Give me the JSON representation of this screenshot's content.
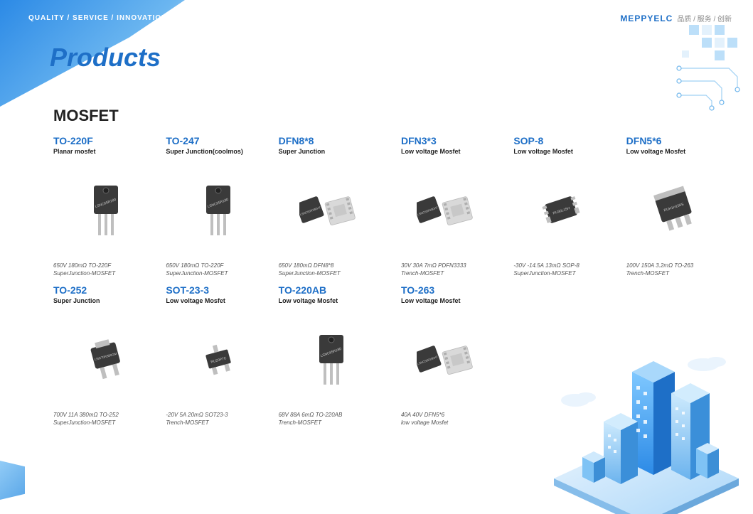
{
  "header": {
    "tagline": "QUALITY / SERVICE / INNOVATION",
    "page_title": "Products",
    "brand_logo": "MEPPYELC",
    "brand_tag_cn": "品质 / 服务 / 创新"
  },
  "section": {
    "title": "MOSFET"
  },
  "products": [
    {
      "name": "TO-220F",
      "sub": "Planar mosfet",
      "spec1": "650V 180mΩ TO-220F",
      "spec2": "SuperJunction-MOSFET",
      "pkg": "to220"
    },
    {
      "name": "TO-247",
      "sub": "Super Junction(coolmos)",
      "spec1": "650V 180mΩ TO-220F",
      "spec2": "SuperJunction-MOSFET",
      "pkg": "to220"
    },
    {
      "name": "DFN8*8",
      "sub": "Super Junction",
      "spec1": "650V 180mΩ DFN8*8",
      "spec2": "SuperJunction-MOSFET",
      "pkg": "dfn88"
    },
    {
      "name": "DFN3*3",
      "sub": "Low voltage Mosfet",
      "spec1": "30V 30A 7mΩ PDFN3333",
      "spec2": "Trench-MOSFET",
      "pkg": "dfn88"
    },
    {
      "name": "SOP-8",
      "sub": "Low voltage Mosfet",
      "spec1": "-30V -14.5A 13mΩ SOP-8",
      "spec2": "SuperJunction-MOSFET",
      "pkg": "sop8"
    },
    {
      "name": "DFN5*6",
      "sub": "Low voltage Mosfet",
      "spec1": "100V 150A 3.2mΩ TO-263",
      "spec2": "Trench-MOSFET",
      "pkg": "to263"
    },
    {
      "name": "TO-252",
      "sub": "Super Junction",
      "spec1": "700V 11A 380mΩ TO-252",
      "spec2": "SuperJunction-MOSFET",
      "pkg": "to252"
    },
    {
      "name": "SOT-23-3",
      "sub": "Low voltage Mosfet",
      "spec1": "-20V 5A 20mΩ SOT23-3",
      "spec2": "Trench-MOSFET",
      "pkg": "sot23"
    },
    {
      "name": "TO-220AB",
      "sub": "Low voltage Mosfet",
      "spec1": "68V 88A 6mΩ TO-220AB",
      "spec2": "Trench-MOSFET",
      "pkg": "to220"
    },
    {
      "name": "TO-263",
      "sub": "Low voltage Mosfet",
      "spec1": "40A 40V DFN5*6",
      "spec2": "low voltage Mosfet",
      "pkg": "dfn88"
    }
  ],
  "colors": {
    "brand_blue": "#1e6fc7",
    "pale_blue": "#bcdff9",
    "chip_body": "#3a3a3a",
    "chip_pad": "#d9d9d9",
    "chip_lead": "#bfbfbf"
  }
}
